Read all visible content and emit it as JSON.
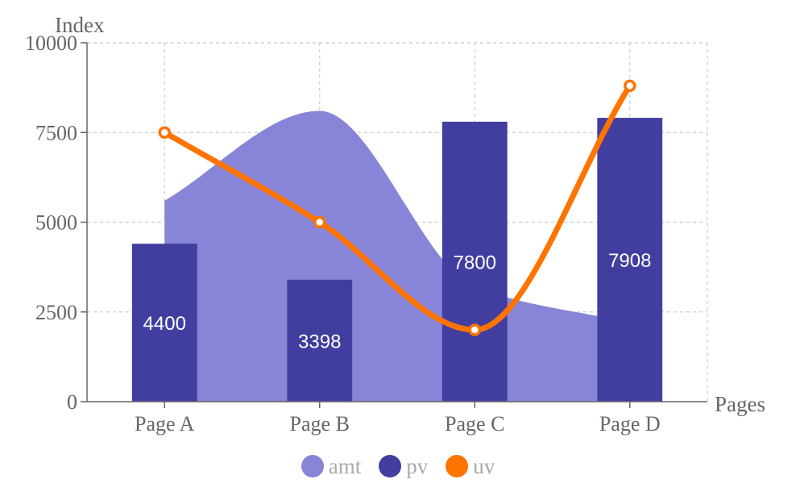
{
  "chart_data": {
    "type": "composed",
    "categories": [
      "Page A",
      "Page B",
      "Page C",
      "Page D"
    ],
    "xlabel": "Pages",
    "ylabel": "Index",
    "ylim": [
      0,
      10000
    ],
    "yticks": [
      0,
      2500,
      5000,
      7500,
      10000
    ],
    "grid": true,
    "legend_position": "bottom-center",
    "series": [
      {
        "name": "amt",
        "kind": "area",
        "color": "#8884d8",
        "values": [
          5600,
          8100,
          3200,
          2200
        ]
      },
      {
        "name": "pv",
        "kind": "bar",
        "color": "#413ea0",
        "values": [
          4400,
          3398,
          7800,
          7908
        ],
        "labels": [
          "4400",
          "3398",
          "7800",
          "7908"
        ]
      },
      {
        "name": "uv",
        "kind": "line",
        "color": "#ff7300",
        "values": [
          7500,
          5000,
          2000,
          8800
        ]
      }
    ]
  }
}
